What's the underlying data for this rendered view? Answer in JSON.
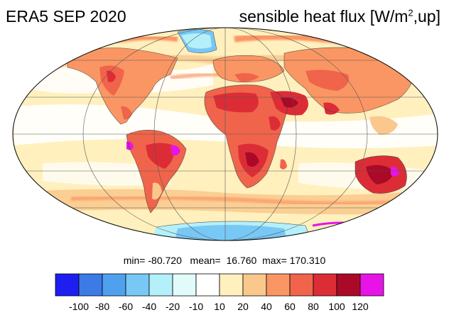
{
  "title_left": "ERA5 SEP 2020",
  "title_right_main": "sensible heat flux [W/m",
  "title_right_sup": "2",
  "title_right_tail": ",up]",
  "stats": {
    "min_label": "min=",
    "min": "-80.720",
    "mean_label": "mean=",
    "mean": "16.760",
    "max_label": "max=",
    "max": "170.310"
  },
  "colorbar": {
    "labels": [
      "-100",
      "-80",
      "-60",
      "-40",
      "-20",
      "-10",
      "10",
      "20",
      "40",
      "60",
      "80",
      "100",
      "120"
    ],
    "colors": [
      "#1e1ef0",
      "#3c7ae6",
      "#50a0f0",
      "#78c8f5",
      "#b4f0fa",
      "#e1fafa",
      "#ffffff",
      "#fff0be",
      "#fac88c",
      "#fa9664",
      "#f0644b",
      "#dc2d37",
      "#aa0a28",
      "#e614e6"
    ]
  }
}
